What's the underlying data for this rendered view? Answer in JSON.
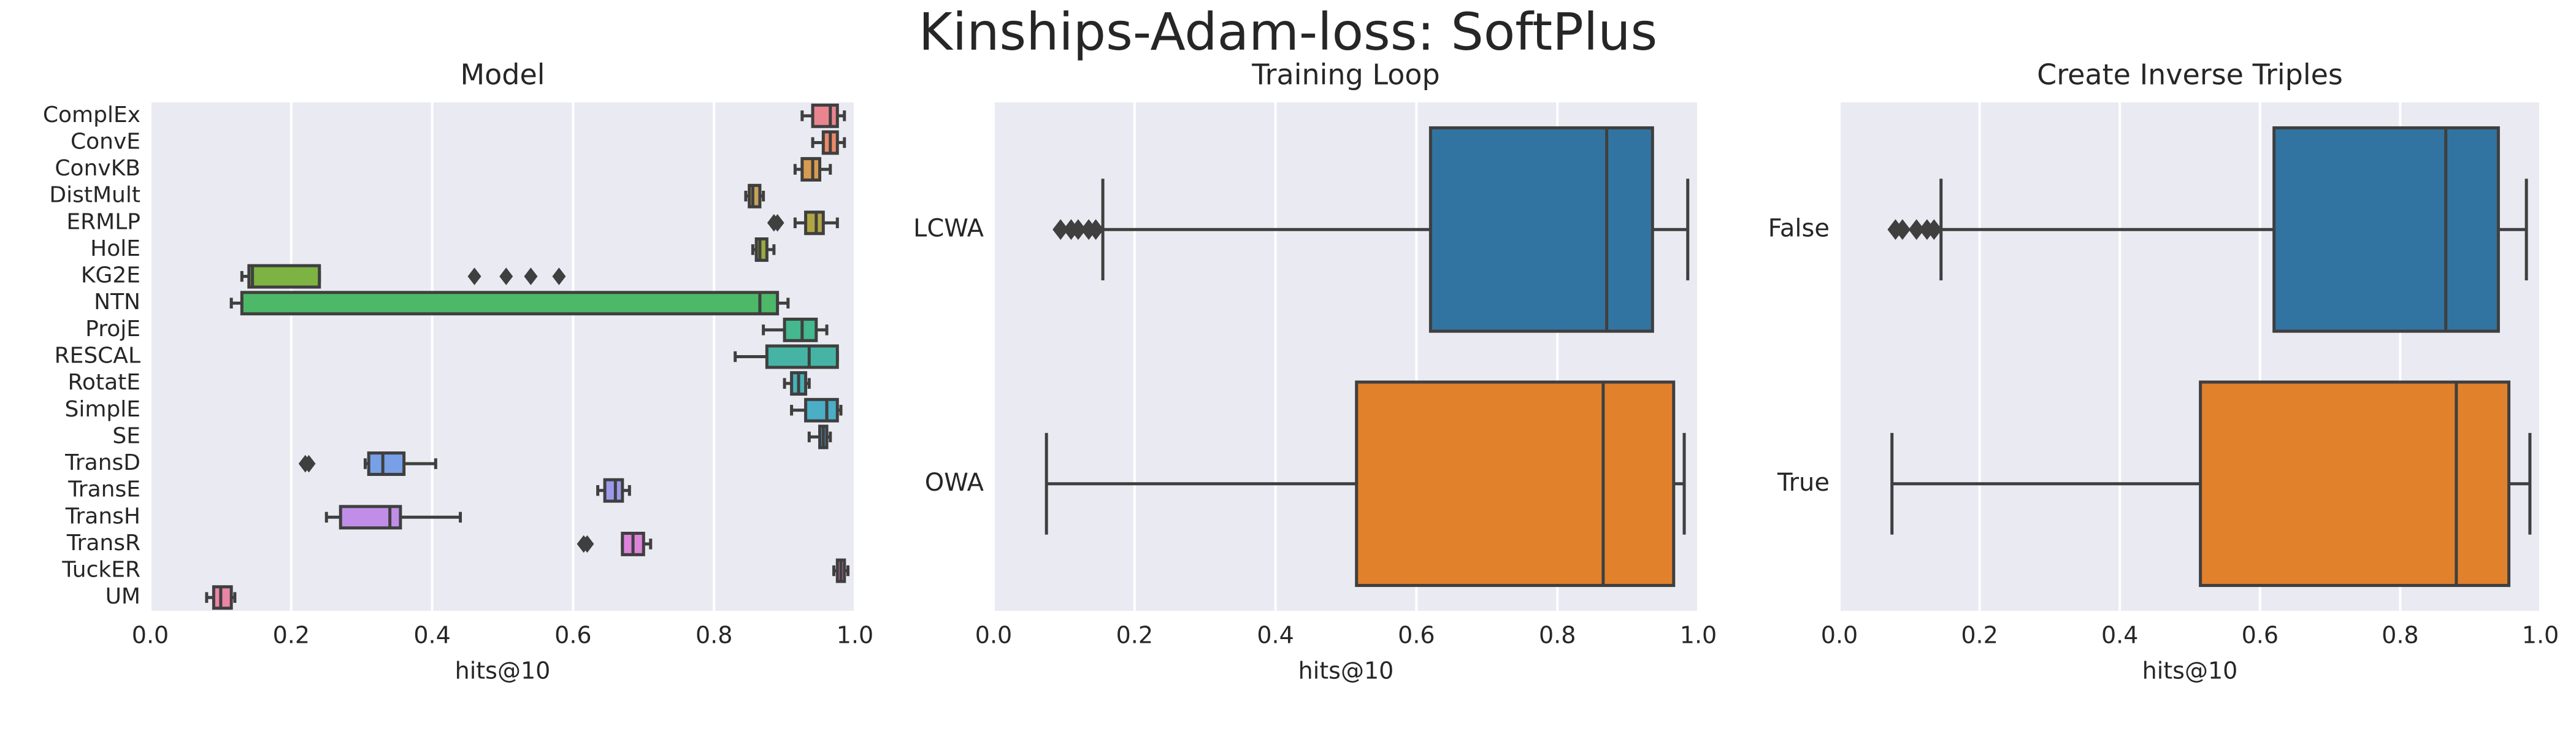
{
  "title": "Kinships-Adam-loss: SoftPlus",
  "chart_data": [
    {
      "type": "box",
      "title": "Model",
      "xlabel": "hits@10",
      "categories": [
        "ComplEx",
        "ConvE",
        "ConvKB",
        "DistMult",
        "ERMLP",
        "HolE",
        "KG2E",
        "NTN",
        "ProjE",
        "RESCAL",
        "RotatE",
        "SimplE",
        "SE",
        "TransD",
        "TransE",
        "TransH",
        "TransR",
        "TuckER",
        "UM"
      ],
      "whislo": [
        0.925,
        0.94,
        0.915,
        0.845,
        0.915,
        0.855,
        0.13,
        0.115,
        0.87,
        0.83,
        0.9,
        0.91,
        0.935,
        0.305,
        0.635,
        0.25,
        0.67,
        0.97,
        0.08
      ],
      "q1": [
        0.94,
        0.955,
        0.925,
        0.85,
        0.93,
        0.86,
        0.14,
        0.13,
        0.9,
        0.875,
        0.91,
        0.93,
        0.95,
        0.31,
        0.645,
        0.27,
        0.67,
        0.975,
        0.09
      ],
      "med": [
        0.965,
        0.965,
        0.94,
        0.855,
        0.945,
        0.865,
        0.145,
        0.865,
        0.925,
        0.935,
        0.92,
        0.96,
        0.955,
        0.33,
        0.66,
        0.34,
        0.685,
        0.98,
        0.1
      ],
      "q3": [
        0.975,
        0.975,
        0.95,
        0.865,
        0.955,
        0.875,
        0.24,
        0.89,
        0.945,
        0.975,
        0.93,
        0.975,
        0.96,
        0.36,
        0.67,
        0.355,
        0.7,
        0.985,
        0.115
      ],
      "whishi": [
        0.985,
        0.985,
        0.965,
        0.87,
        0.975,
        0.885,
        0.24,
        0.905,
        0.96,
        0.975,
        0.935,
        0.98,
        0.965,
        0.405,
        0.68,
        0.44,
        0.71,
        0.99,
        0.12
      ],
      "outliers": [
        [],
        [],
        [],
        [],
        [
          0.885,
          0.89
        ],
        [],
        [
          0.46,
          0.505,
          0.54,
          0.58
        ],
        [],
        [],
        [],
        [],
        [],
        [],
        [
          0.22,
          0.225
        ],
        [],
        [],
        [
          0.615,
          0.62
        ],
        [],
        []
      ],
      "colors": [
        "#e8858f",
        "#ea8a6a",
        "#d99c4f",
        "#c5a25a",
        "#b0a543",
        "#9aa941",
        "#7cb342",
        "#4cb868",
        "#44b88f",
        "#45b4a5",
        "#48b1b6",
        "#4aaec5",
        "#4fa8d6",
        "#78a0e6",
        "#9d99ea",
        "#c08ee8",
        "#dd83da",
        "#e883c0",
        "#eb85a6"
      ],
      "xlim": [
        0,
        1
      ],
      "xticks": [
        {
          "value": 0,
          "label": "0.0"
        },
        0.2,
        0.4,
        0.6,
        0.8,
        {
          "value": 1,
          "label": "1.0"
        }
      ],
      "grid": true
    },
    {
      "type": "box",
      "title": "Training Loop",
      "xlabel": "hits@10",
      "categories": [
        "LCWA",
        "OWA"
      ],
      "whislo": [
        0.155,
        0.075
      ],
      "q1": [
        0.62,
        0.515
      ],
      "med": [
        0.87,
        0.865
      ],
      "q3": [
        0.935,
        0.965
      ],
      "whishi": [
        0.985,
        0.98
      ],
      "outliers": [
        [
          0.095,
          0.11,
          0.12,
          0.135,
          0.145
        ],
        []
      ],
      "colors": [
        "#3274a1",
        "#e1812c"
      ],
      "xlim": [
        0,
        1
      ],
      "xticks": [
        {
          "value": 0,
          "label": "0.0"
        },
        0.2,
        0.4,
        0.6,
        0.8,
        {
          "value": 1,
          "label": "1.0"
        }
      ],
      "grid": true
    },
    {
      "type": "box",
      "title": "Create Inverse Triples",
      "xlabel": "hits@10",
      "categories": [
        "False",
        "True"
      ],
      "whislo": [
        0.145,
        0.075
      ],
      "q1": [
        0.62,
        0.515
      ],
      "med": [
        0.865,
        0.88
      ],
      "q3": [
        0.94,
        0.955
      ],
      "whishi": [
        0.98,
        0.985
      ],
      "outliers": [
        [
          0.08,
          0.09,
          0.11,
          0.125,
          0.135
        ],
        []
      ],
      "colors": [
        "#3274a1",
        "#e1812c"
      ],
      "xlim": [
        0,
        1
      ],
      "xticks": [
        {
          "value": 0,
          "label": "0.0"
        },
        0.2,
        0.4,
        0.6,
        0.8,
        {
          "value": 1,
          "label": "1.0"
        }
      ],
      "grid": true
    }
  ]
}
